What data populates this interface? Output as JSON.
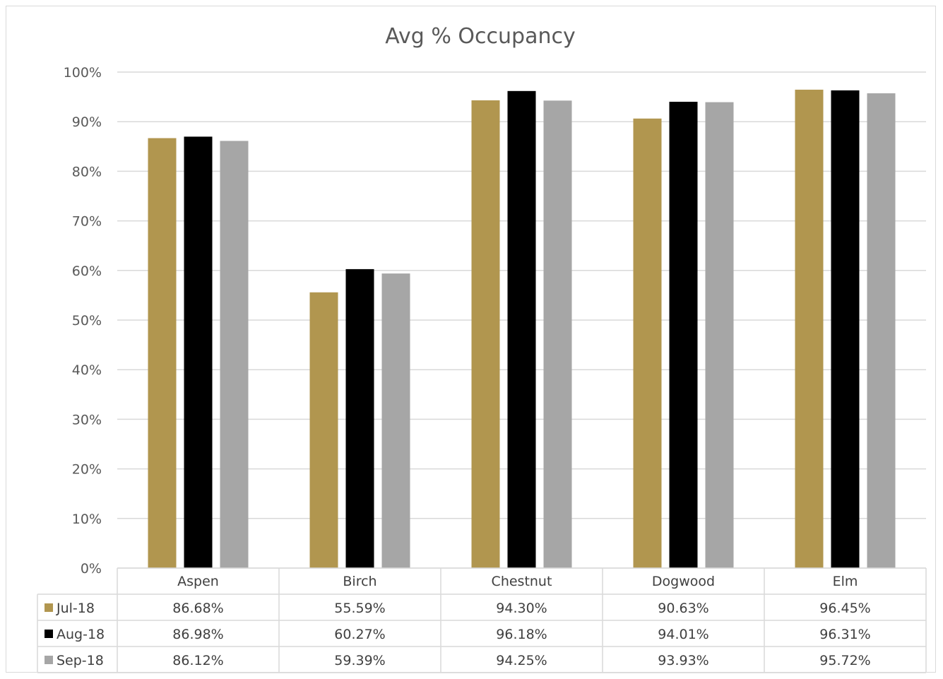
{
  "chart_data": {
    "type": "bar",
    "title": "Avg % Occupancy",
    "categories": [
      "Aspen",
      "Birch",
      "Chestnut",
      "Dogwood",
      "Elm"
    ],
    "series": [
      {
        "name": "Jul-18",
        "color": "#b1964f",
        "values": [
          86.68,
          55.59,
          94.3,
          90.63,
          96.45
        ],
        "labels": [
          "86.68%",
          "55.59%",
          "94.30%",
          "90.63%",
          "96.45%"
        ]
      },
      {
        "name": "Aug-18",
        "color": "#000000",
        "values": [
          86.98,
          60.27,
          96.18,
          94.01,
          96.31
        ],
        "labels": [
          "86.98%",
          "60.27%",
          "96.18%",
          "94.01%",
          "96.31%"
        ]
      },
      {
        "name": "Sep-18",
        "color": "#a6a6a6",
        "values": [
          86.12,
          59.39,
          94.25,
          93.93,
          95.72
        ],
        "labels": [
          "86.12%",
          "59.39%",
          "94.25%",
          "93.93%",
          "95.72%"
        ]
      }
    ],
    "ylim": [
      0,
      100
    ],
    "y_ticks": [
      "0%",
      "10%",
      "20%",
      "30%",
      "40%",
      "50%",
      "60%",
      "70%",
      "80%",
      "90%",
      "100%"
    ],
    "grid": true,
    "legend": "data-table",
    "data_table": true
  }
}
